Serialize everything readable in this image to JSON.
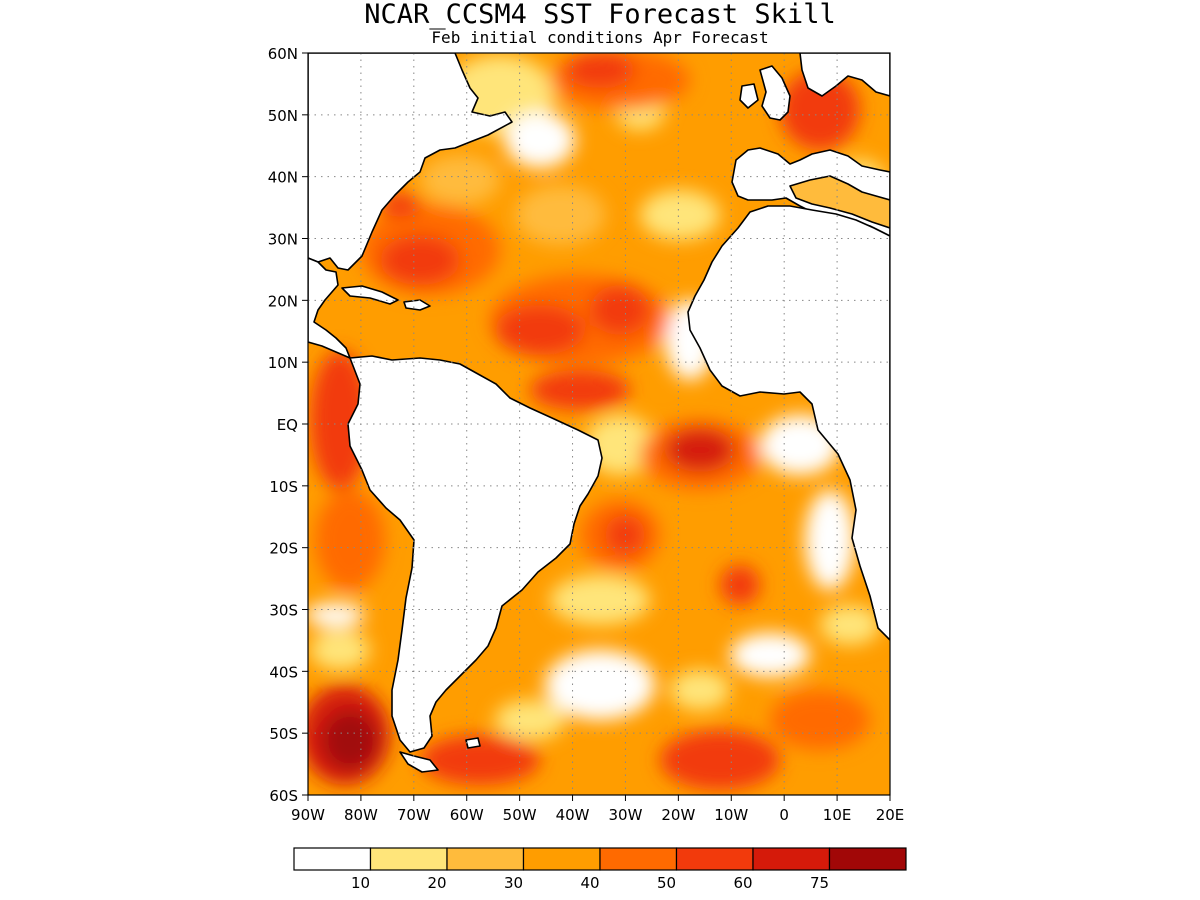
{
  "title": "NCAR_CCSM4 SST Forecast Skill",
  "subtitle": "Feb initial conditions  Apr Forecast",
  "map": {
    "region": "Atlantic Ocean",
    "lon_range": [
      -90,
      20
    ],
    "lat_range": [
      -60,
      60
    ],
    "gridlines": "dotted",
    "lat_ticks": [
      {
        "value": 60,
        "label": "60N"
      },
      {
        "value": 50,
        "label": "50N"
      },
      {
        "value": 40,
        "label": "40N"
      },
      {
        "value": 30,
        "label": "30N"
      },
      {
        "value": 20,
        "label": "20N"
      },
      {
        "value": 10,
        "label": "10N"
      },
      {
        "value": 0,
        "label": "EQ"
      },
      {
        "value": -10,
        "label": "10S"
      },
      {
        "value": -20,
        "label": "20S"
      },
      {
        "value": -30,
        "label": "30S"
      },
      {
        "value": -40,
        "label": "40S"
      },
      {
        "value": -50,
        "label": "50S"
      },
      {
        "value": -60,
        "label": "60S"
      }
    ],
    "lon_ticks": [
      {
        "value": -90,
        "label": "90W"
      },
      {
        "value": -80,
        "label": "80W"
      },
      {
        "value": -70,
        "label": "70W"
      },
      {
        "value": -60,
        "label": "60W"
      },
      {
        "value": -50,
        "label": "50W"
      },
      {
        "value": -40,
        "label": "40W"
      },
      {
        "value": -30,
        "label": "30W"
      },
      {
        "value": -20,
        "label": "20W"
      },
      {
        "value": -10,
        "label": "10W"
      },
      {
        "value": 0,
        "label": "0"
      },
      {
        "value": 10,
        "label": "10E"
      },
      {
        "value": 20,
        "label": "20E"
      }
    ]
  },
  "colorbar": {
    "colors": [
      "#ffffff",
      "#ffe57a",
      "#ffbb3c",
      "#ff9d00",
      "#ff6a00",
      "#f23a0c",
      "#d51a0a",
      "#a10707"
    ],
    "labels": [
      "10",
      "20",
      "30",
      "40",
      "50",
      "60",
      "75"
    ]
  }
}
